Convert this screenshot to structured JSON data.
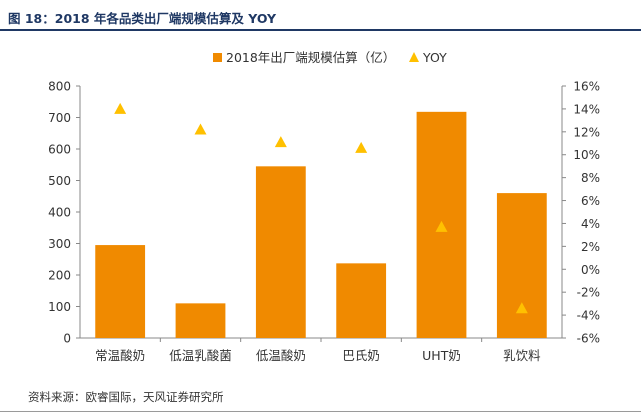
{
  "figure": {
    "title": "图 18：2018 年各品类出厂端规模估算及 YOY",
    "source": "资料来源：欧睿国际，天风证券研究所"
  },
  "colors": {
    "bar": "#f08a00",
    "yoy": "#ffc000",
    "title": "#1f3864"
  },
  "chart_data": {
    "type": "bar",
    "categories": [
      "常温酸奶",
      "低温乳酸菌",
      "低温酸奶",
      "巴氏奶",
      "UHT奶",
      "乳饮料"
    ],
    "series": [
      {
        "name": "2018年出厂端规模估算（亿）",
        "type": "bar",
        "axis": "left",
        "values": [
          295,
          110,
          545,
          237,
          718,
          460
        ]
      },
      {
        "name": "YOY",
        "type": "scatter",
        "marker": "triangle",
        "axis": "right",
        "values": [
          0.14,
          0.122,
          0.111,
          0.106,
          0.037,
          -0.034
        ]
      }
    ],
    "ylim_left": [
      0,
      800
    ],
    "yticks_left": [
      "0",
      "100",
      "200",
      "300",
      "400",
      "500",
      "600",
      "700",
      "800"
    ],
    "ylim_right": [
      -0.06,
      0.16
    ],
    "yticks_right": [
      "-6%",
      "-4%",
      "-2%",
      "0%",
      "2%",
      "4%",
      "6%",
      "8%",
      "10%",
      "12%",
      "14%",
      "16%"
    ],
    "legend": "top-center",
    "grid": false
  }
}
